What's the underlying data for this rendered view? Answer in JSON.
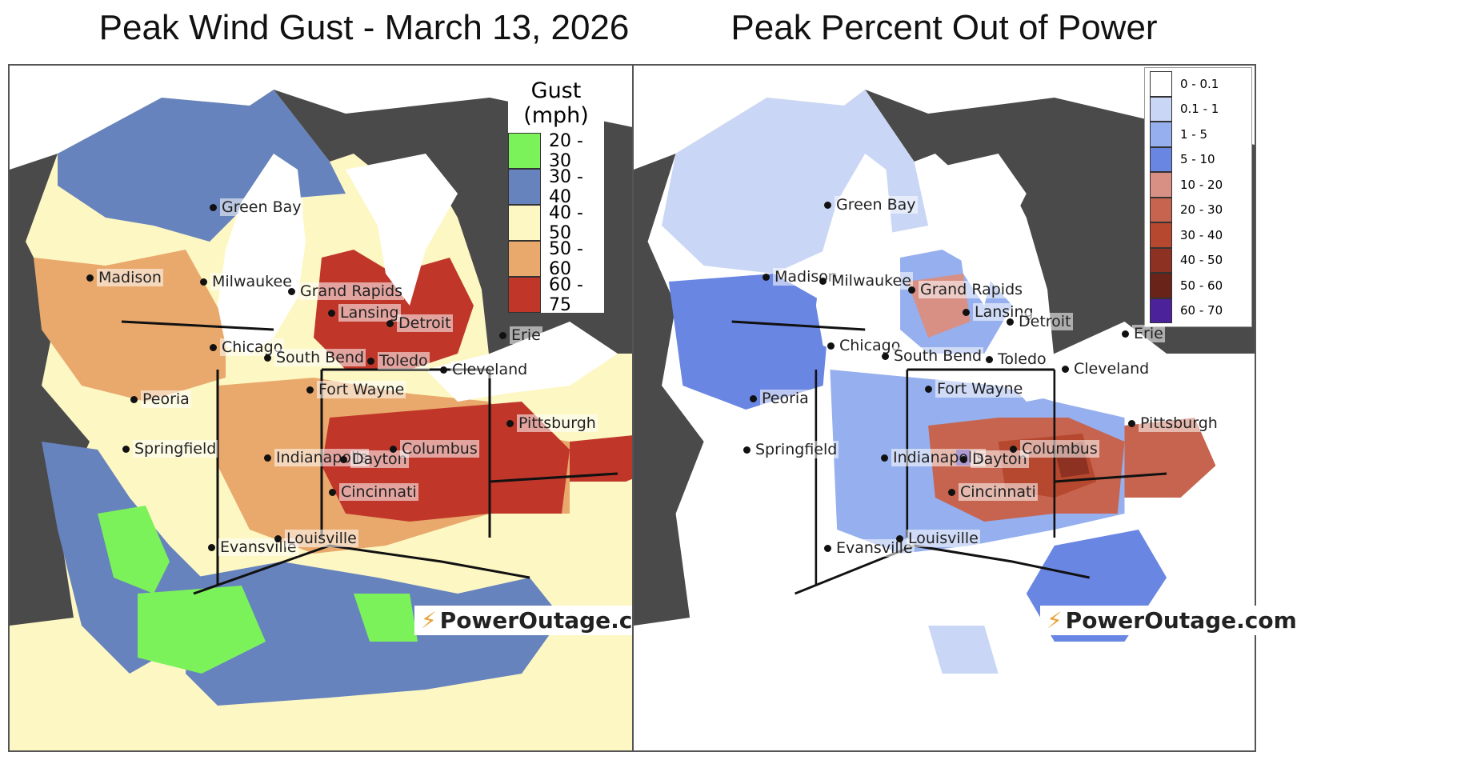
{
  "left": {
    "title": "Peak Wind Gust - March 13, 2026",
    "legend_title_1": "Gust",
    "legend_title_2": "(mph)",
    "legend": [
      {
        "label": "20 - 30",
        "color": "#7cf25a"
      },
      {
        "label": "30 - 40",
        "color": "#6683bd"
      },
      {
        "label": "40 - 50",
        "color": "#fdf7c4"
      },
      {
        "label": "50 - 60",
        "color": "#e9a96c"
      },
      {
        "label": "60 - 75",
        "color": "#c0372a"
      }
    ],
    "brand": "PowerOutage.com"
  },
  "right": {
    "title": "Peak Percent Out of Power",
    "legend": [
      {
        "label": "0 - 0.1",
        "color": "#ffffff"
      },
      {
        "label": "0.1 - 1",
        "color": "#c9d6f5"
      },
      {
        "label": "1 - 5",
        "color": "#96afee"
      },
      {
        "label": "5 - 10",
        "color": "#6a86e3"
      },
      {
        "label": "10 - 20",
        "color": "#d88f84"
      },
      {
        "label": "20 - 30",
        "color": "#c7644f"
      },
      {
        "label": "30 - 40",
        "color": "#b5482f"
      },
      {
        "label": "40 - 50",
        "color": "#8d3222"
      },
      {
        "label": "50 - 60",
        "color": "#6a2318"
      },
      {
        "label": "60 - 70",
        "color": "#4b229a"
      }
    ],
    "brand": "PowerOutage.com"
  },
  "cities": [
    {
      "name": "Green Bay"
    },
    {
      "name": "Madison"
    },
    {
      "name": "Milwaukee"
    },
    {
      "name": "Grand Rapids"
    },
    {
      "name": "Lansing"
    },
    {
      "name": "Detroit"
    },
    {
      "name": "Erie"
    },
    {
      "name": "Chicago"
    },
    {
      "name": "South Bend"
    },
    {
      "name": "Toledo"
    },
    {
      "name": "Cleveland"
    },
    {
      "name": "Fort Wayne"
    },
    {
      "name": "Peoria"
    },
    {
      "name": "Pittsburgh"
    },
    {
      "name": "Springfield"
    },
    {
      "name": "Indianapolis"
    },
    {
      "name": "Dayton"
    },
    {
      "name": "Columbus"
    },
    {
      "name": "Cincinnati"
    },
    {
      "name": "Evansville"
    },
    {
      "name": "Louisville"
    }
  ]
}
